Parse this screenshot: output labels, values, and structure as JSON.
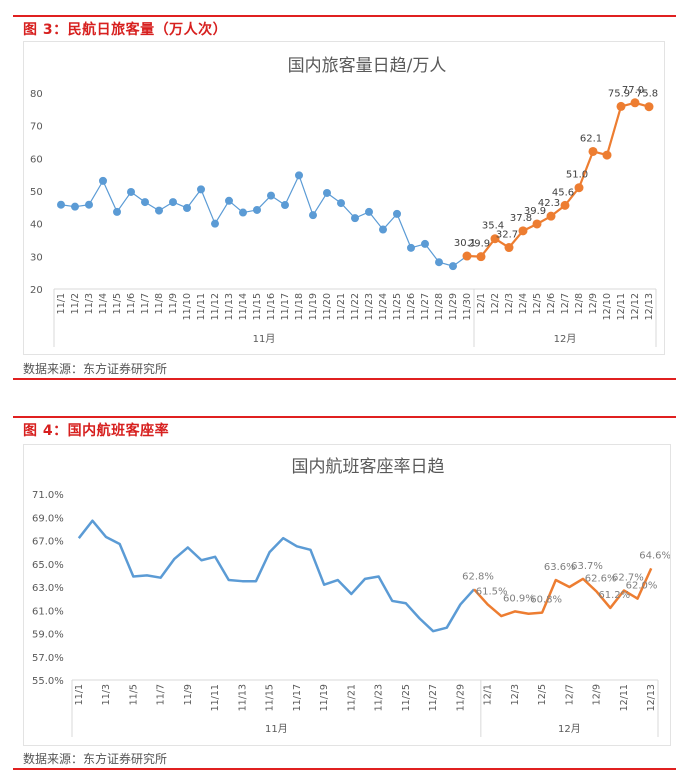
{
  "figure3": {
    "caption": "图 3：民航日旅客量（万人次）",
    "source": "数据来源：东方证券研究所"
  },
  "figure4": {
    "caption": "图 4：国内航班客座率",
    "source": "数据来源：东方证券研究所"
  },
  "colors": {
    "accent_red": "#d7201f",
    "series_nov": "#5b9bd5",
    "series_dec": "#ed7d31"
  },
  "chart_data": [
    {
      "type": "line",
      "title": "国内旅客量日趋/万人",
      "xlabel": "",
      "ylabel": "",
      "ylim": [
        20,
        80
      ],
      "yticks": [
        20,
        30,
        40,
        50,
        60,
        70,
        80
      ],
      "grid": false,
      "markers": true,
      "group_labels": [
        "11月",
        "12月"
      ],
      "categories": [
        "11/1",
        "11/2",
        "11/3",
        "11/4",
        "11/5",
        "11/6",
        "11/7",
        "11/8",
        "11/9",
        "11/10",
        "11/11",
        "11/12",
        "11/13",
        "11/14",
        "11/15",
        "11/16",
        "11/17",
        "11/18",
        "11/19",
        "11/20",
        "11/21",
        "11/22",
        "11/23",
        "11/24",
        "11/25",
        "11/26",
        "11/27",
        "11/28",
        "11/29",
        "11/30",
        "12/1",
        "12/2",
        "12/3",
        "12/4",
        "12/5",
        "12/6",
        "12/7",
        "12/8",
        "12/9",
        "12/10",
        "12/11",
        "12/12",
        "12/13"
      ],
      "series": [
        {
          "name": "11月",
          "color": "#5b9bd5",
          "x_start_index": 0,
          "values": [
            45.8,
            45.2,
            45.8,
            53.1,
            43.6,
            49.7,
            46.6,
            44.0,
            46.6,
            44.8,
            50.5,
            40.0,
            47.0,
            43.4,
            44.2,
            48.6,
            45.7,
            54.8,
            42.6,
            49.4,
            46.3,
            41.7,
            43.6,
            38.2,
            43.0,
            32.6,
            33.8,
            28.2,
            27.0,
            30.1
          ]
        },
        {
          "name": "12月",
          "color": "#ed7d31",
          "x_start_index": 29,
          "values": [
            30.1,
            29.9,
            35.4,
            32.7,
            37.8,
            39.9,
            42.3,
            45.6,
            51.0,
            62.1,
            61.0,
            75.9,
            77.0,
            75.8
          ],
          "data_labels": [
            "30.1",
            "29.9",
            "35.4",
            "32.7",
            "37.8",
            "39.9",
            "42.3",
            "45.6",
            "51.0",
            "62.1",
            "",
            "75.9",
            "77.0",
            "75.8"
          ]
        }
      ]
    },
    {
      "type": "line",
      "title": "国内航班客座率日趋",
      "xlabel": "",
      "ylabel": "",
      "ylim": [
        55.0,
        71.0
      ],
      "yticks": [
        "55.0%",
        "57.0%",
        "59.0%",
        "61.0%",
        "63.0%",
        "65.0%",
        "67.0%",
        "69.0%",
        "71.0%"
      ],
      "grid": false,
      "markers": false,
      "group_labels": [
        "11月",
        "12月"
      ],
      "categories": [
        "11/1",
        "11/2",
        "11/3",
        "11/4",
        "11/5",
        "11/6",
        "11/7",
        "11/8",
        "11/9",
        "11/10",
        "11/11",
        "11/12",
        "11/13",
        "11/14",
        "11/15",
        "11/16",
        "11/17",
        "11/18",
        "11/19",
        "11/20",
        "11/21",
        "11/22",
        "11/23",
        "11/24",
        "11/25",
        "11/26",
        "11/27",
        "11/28",
        "11/29",
        "11/30",
        "12/1",
        "12/2",
        "12/3",
        "12/4",
        "12/5",
        "12/6",
        "12/7",
        "12/8",
        "12/9",
        "12/10",
        "12/11",
        "12/12",
        "12/13"
      ],
      "tick_labels_shown": [
        "11/1",
        "11/3",
        "11/5",
        "11/7",
        "11/9",
        "11/11",
        "11/13",
        "11/15",
        "11/17",
        "11/19",
        "11/21",
        "11/23",
        "11/25",
        "11/27",
        "11/29",
        "12/1",
        "12/3",
        "12/5",
        "12/7",
        "12/9",
        "12/11",
        "12/13"
      ],
      "series": [
        {
          "name": "11月",
          "color": "#5b9bd5",
          "x_start_index": 0,
          "values": [
            67.2,
            68.7,
            67.3,
            66.7,
            63.9,
            64.0,
            63.8,
            65.4,
            66.4,
            65.3,
            65.6,
            63.6,
            63.5,
            63.5,
            66.0,
            67.2,
            66.5,
            66.2,
            63.2,
            63.6,
            62.4,
            63.7,
            63.9,
            61.8,
            61.6,
            60.3,
            59.2,
            59.5,
            61.5,
            62.8
          ]
        },
        {
          "name": "12月",
          "color": "#ed7d31",
          "x_start_index": 29,
          "values": [
            62.8,
            61.5,
            60.5,
            60.9,
            60.7,
            60.8,
            63.6,
            63.0,
            63.7,
            62.6,
            61.2,
            62.7,
            62.0,
            64.6
          ],
          "data_labels": [
            "62.8%",
            "61.5%",
            "",
            "60.9%",
            "",
            "60.8%",
            "63.6%",
            "",
            "63.7%",
            "62.6%",
            "61.2%",
            "62.7%",
            "62.0%",
            "64.6%"
          ]
        }
      ]
    }
  ]
}
